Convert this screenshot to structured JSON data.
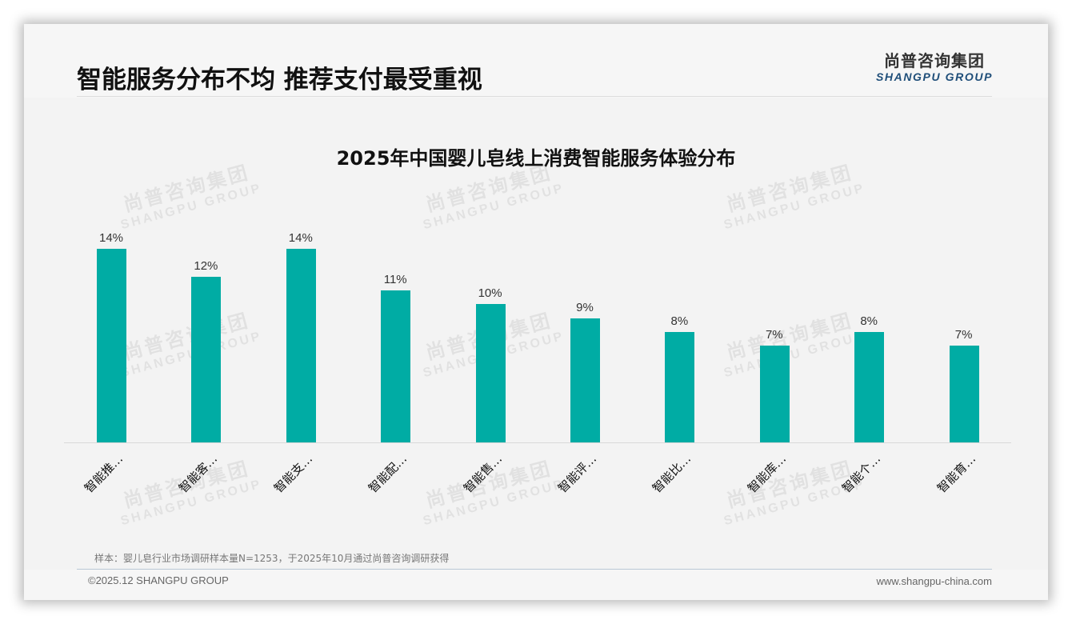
{
  "header": {
    "title": "智能服务分布不均 推荐支付最受重视",
    "logo_cn": "尚普咨询集团",
    "logo_en": "SHANGPU GROUP"
  },
  "watermark": {
    "cn": "尚普咨询集团",
    "en": "SHANGPU GROUP"
  },
  "chart_data": {
    "type": "bar",
    "title": "2025年中国婴儿皂线上消费智能服务体验分布",
    "categories": [
      "智能推…",
      "智能客…",
      "智能支…",
      "智能配…",
      "智能售…",
      "智能评…",
      "智能比…",
      "智能库…",
      "智能个…",
      "智能育…"
    ],
    "values": [
      14,
      12,
      14,
      11,
      10,
      9,
      8,
      7,
      8,
      7
    ],
    "value_labels": [
      "14%",
      "12%",
      "14%",
      "11%",
      "10%",
      "9%",
      "8%",
      "7%",
      "8%",
      "7%"
    ],
    "xlabel": "",
    "ylabel": "",
    "ylim": [
      0,
      16.4
    ],
    "grid": false,
    "legend": "none",
    "bar_color": "#00aca4",
    "unit": "%"
  },
  "footer": {
    "note": "样本：婴儿皂行业市场调研样本量N=1253，于2025年10月通过尚普咨询调研获得",
    "copyright": "©2025.12 SHANGPU GROUP",
    "website": "www.shangpu-china.com"
  }
}
